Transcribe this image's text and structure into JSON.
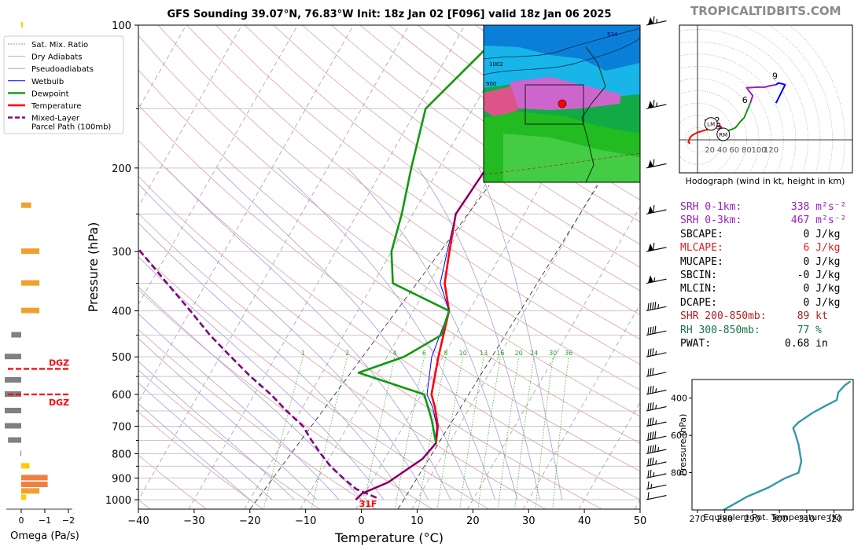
{
  "header": {
    "title": "GFS Sounding 39.07°N, 76.83°W Init: 18z Jan 02 [F096] valid 18z Jan 06 2025",
    "site": "TROPICALTIDBITS.COM"
  },
  "legend": {
    "items": [
      {
        "label": "Sat. Mix. Ratio",
        "color": "#2ca02c",
        "style": "dotted"
      },
      {
        "label": "Dry Adiabats",
        "color": "#e0a0a0",
        "style": "solid"
      },
      {
        "label": "Pseudoadiabats",
        "color": "#a0a0e0",
        "style": "solid"
      },
      {
        "label": "Wetbulb",
        "color": "#0000ff",
        "style": "solid"
      },
      {
        "label": "Dewpoint",
        "color": "#119911",
        "style": "solid"
      },
      {
        "label": "Temperature",
        "color": "#ff0000",
        "style": "solid"
      },
      {
        "label": "Mixed-Layer",
        "label2": "Parcel Path (100mb)",
        "color": "#800080",
        "style": "dashed"
      }
    ]
  },
  "chart_data": [
    {
      "type": "line",
      "name": "skew-t",
      "xlabel": "Temperature (°C)",
      "ylabel": "Pressure (hPa)",
      "xlim": [
        -40,
        50
      ],
      "ylim": [
        1000,
        100
      ],
      "log_y": true,
      "skew": true,
      "x_ticks": [
        "−40",
        "−30",
        "−20",
        "−10",
        "0",
        "10",
        "20",
        "30",
        "40",
        "50"
      ],
      "y_ticks": [
        "100",
        "200",
        "300",
        "400",
        "500",
        "600",
        "700",
        "800",
        "900",
        "1000"
      ],
      "mixing_ratio_labels": [
        "1",
        "2",
        "4",
        "6",
        "8",
        "10",
        "13",
        "16",
        "20",
        "24",
        "30",
        "36"
      ],
      "surface_label": "31F",
      "series": [
        {
          "name": "Temperature",
          "color": "#ff0000",
          "points": [
            [
              -1.0,
              1000
            ],
            [
              -0.5,
              970
            ],
            [
              3.0,
              920
            ],
            [
              6.8,
              820
            ],
            [
              7.6,
              760
            ],
            [
              6.2,
              700
            ],
            [
              3.8,
              640
            ],
            [
              1.8,
              600
            ],
            [
              -0.8,
              500
            ],
            [
              -3.6,
              400
            ],
            [
              -7.2,
              350
            ],
            [
              -9.6,
              300
            ],
            [
              -12.3,
              250
            ],
            [
              -11.5,
              200
            ],
            [
              -7.0,
              150
            ],
            [
              -0.5,
              100
            ]
          ]
        },
        {
          "name": "Wetbulb",
          "color": "#0000ff",
          "points": [
            [
              -1.0,
              1000
            ],
            [
              -0.5,
              970
            ],
            [
              3.0,
              920
            ],
            [
              6.8,
              820
            ],
            [
              7.5,
              760
            ],
            [
              6.0,
              700
            ],
            [
              3.4,
              640
            ],
            [
              1.0,
              600
            ],
            [
              -2.0,
              500
            ],
            [
              -3.6,
              400
            ],
            [
              -8.0,
              350
            ],
            [
              -10.0,
              300
            ],
            [
              -12.3,
              250
            ],
            [
              -11.5,
              200
            ],
            [
              -7.0,
              150
            ],
            [
              -0.7,
              100
            ]
          ]
        },
        {
          "name": "Dewpoint",
          "color": "#119911",
          "points": [
            [
              7.6,
              760
            ],
            [
              4.5,
              680
            ],
            [
              0.5,
              600
            ],
            [
              -13.5,
              540
            ],
            [
              -7.0,
              500
            ],
            [
              -2.5,
              450
            ],
            [
              -3.6,
              400
            ],
            [
              -16.5,
              350
            ],
            [
              -20.0,
              300
            ],
            [
              -22.0,
              250
            ],
            [
              -25.0,
              200
            ],
            [
              -28.5,
              150
            ],
            [
              -22.0,
              100
            ]
          ]
        },
        {
          "name": "Mixed-Layer Parcel Path (100mb)",
          "color": "#800080",
          "points": [
            [
              2.5,
              990
            ],
            [
              -2.0,
              950
            ],
            [
              -5.5,
              900
            ],
            [
              -9.0,
              850
            ],
            [
              -12.0,
              800
            ],
            [
              -15.0,
              750
            ],
            [
              -18.0,
              700
            ],
            [
              -22.5,
              650
            ],
            [
              -27.0,
              600
            ],
            [
              -32.5,
              550
            ],
            [
              -38.0,
              500
            ],
            [
              -44.0,
              450
            ],
            [
              -50.0,
              400
            ],
            [
              -57.0,
              350
            ],
            [
              -65.0,
              300
            ],
            [
              -74.0,
              250
            ]
          ]
        }
      ]
    },
    {
      "type": "bar",
      "name": "omega",
      "xlabel": "Omega (Pa/s)",
      "x_ticks": [
        "0",
        "−1",
        "−2"
      ],
      "dgz_label": "DGZ",
      "dgz_levels_hpa": [
        530,
        600
      ],
      "bars": [
        {
          "p": 100,
          "v": -0.1,
          "c": "#ffcc00"
        },
        {
          "p": 240,
          "v": -0.6,
          "c": "#f0a030"
        },
        {
          "p": 300,
          "v": -1.1,
          "c": "#f0a030"
        },
        {
          "p": 350,
          "v": -1.1,
          "c": "#f0a030"
        },
        {
          "p": 400,
          "v": -1.1,
          "c": "#f0a030"
        },
        {
          "p": 450,
          "v": 0.6,
          "c": "#808080"
        },
        {
          "p": 500,
          "v": 1.0,
          "c": "#808080"
        },
        {
          "p": 560,
          "v": 1.0,
          "c": "#808080"
        },
        {
          "p": 600,
          "v": 1.0,
          "c": "#808080"
        },
        {
          "p": 650,
          "v": 1.0,
          "c": "#808080"
        },
        {
          "p": 700,
          "v": 1.0,
          "c": "#808080"
        },
        {
          "p": 750,
          "v": 0.8,
          "c": "#808080"
        },
        {
          "p": 800,
          "v": 0.05,
          "c": "#808080"
        },
        {
          "p": 850,
          "v": -0.5,
          "c": "#ffcc00"
        },
        {
          "p": 900,
          "v": -1.6,
          "c": "#f08040"
        },
        {
          "p": 930,
          "v": -1.6,
          "c": "#f08040"
        },
        {
          "p": 960,
          "v": -1.1,
          "c": "#f0a030"
        },
        {
          "p": 990,
          "v": -0.3,
          "c": "#ffcc00"
        }
      ]
    },
    {
      "type": "line",
      "name": "hodograph",
      "xlabel": "Hodograph (wind in kt, height in km)",
      "x_ticks": [
        "20",
        "40",
        "60",
        "80",
        "100",
        "120"
      ],
      "height_labels": [
        "1",
        "2",
        "3",
        "6",
        "9"
      ],
      "motion_labels": [
        "LM",
        "RM"
      ],
      "segments": [
        {
          "color": "#ff0000",
          "points": [
            [
              -12,
              -6
            ],
            [
              -15,
              -4
            ],
            [
              -12,
              4
            ],
            [
              -8,
              8
            ],
            [
              0,
              12
            ],
            [
              20,
              18
            ],
            [
              26,
              20
            ],
            [
              34,
              22
            ],
            [
              38,
              22
            ],
            [
              40,
              18
            ],
            [
              40,
              12
            ]
          ]
        },
        {
          "color": "#119911",
          "points": [
            [
              40,
              12
            ],
            [
              46,
              14
            ],
            [
              56,
              17
            ],
            [
              62,
              20
            ],
            [
              70,
              30
            ],
            [
              76,
              36
            ],
            [
              86,
              60
            ]
          ]
        },
        {
          "color": "#9920bb",
          "points": [
            [
              86,
              60
            ],
            [
              90,
              72
            ],
            [
              80,
              85
            ],
            [
              100,
              86
            ],
            [
              110,
              86
            ],
            [
              117,
              88
            ],
            [
              128,
              90
            ]
          ]
        },
        {
          "color": "#0000ff",
          "points": [
            [
              128,
              90
            ],
            [
              132,
              93
            ],
            [
              143,
              90
            ],
            [
              128,
              60
            ]
          ]
        }
      ],
      "markers": [
        {
          "label": "1",
          "at": [
            20,
            18
          ]
        },
        {
          "label": "2",
          "at": [
            38,
            22
          ]
        },
        {
          "label": "3",
          "at": [
            40,
            12
          ]
        },
        {
          "label": "6",
          "at": [
            83,
            55
          ]
        },
        {
          "label": "9",
          "at": [
            132,
            94
          ]
        }
      ],
      "motions": [
        {
          "label": "LM",
          "at": [
            22,
            26
          ]
        },
        {
          "label": "RM",
          "at": [
            42,
            9
          ]
        }
      ]
    },
    {
      "type": "line",
      "name": "theta-e",
      "xlabel": "Equivalent Pot. Temperature (K)",
      "ylabel": "Pressure (hPa)",
      "xlim": [
        268,
        327
      ],
      "ylim": [
        1000,
        300
      ],
      "x_ticks": [
        "270",
        "280",
        "290",
        "300",
        "310",
        "320"
      ],
      "y_ticks": [
        "400",
        "600",
        "800"
      ],
      "series": [
        {
          "name": "Theta-E",
          "color": "#3399aa",
          "points": [
            [
              279.5,
              1000
            ],
            [
              282,
              980
            ],
            [
              288,
              930
            ],
            [
              296,
              880
            ],
            [
              302,
              830
            ],
            [
              307,
              800
            ],
            [
              308,
              740
            ],
            [
              307,
              650
            ],
            [
              306,
              600
            ],
            [
              305,
              560
            ],
            [
              307,
              530
            ],
            [
              312,
              480
            ],
            [
              317,
              440
            ],
            [
              321,
              410
            ],
            [
              321.5,
              370
            ],
            [
              324,
              330
            ],
            [
              326,
              310
            ]
          ]
        }
      ]
    }
  ],
  "indices": [
    {
      "label": "SRH 0-1km:",
      "value": "338",
      "unit": "m²s⁻²",
      "color": "#9920bb"
    },
    {
      "label": "SRH 0-3km:",
      "value": "467",
      "unit": "m²s⁻²",
      "color": "#9920bb"
    },
    {
      "label": "SBCAPE:",
      "value": "0",
      "unit": "J/kg",
      "color": "#000000"
    },
    {
      "label": "MLCAPE:",
      "value": "6",
      "unit": "J/kg",
      "color": "#dd2222"
    },
    {
      "label": "MUCAPE:",
      "value": "0",
      "unit": "J/kg",
      "color": "#000000"
    },
    {
      "label": "SBCIN:",
      "value": "-0",
      "unit": "J/kg",
      "color": "#000000"
    },
    {
      "label": "MLCIN:",
      "value": "0",
      "unit": "J/kg",
      "color": "#000000"
    },
    {
      "label": "DCAPE:",
      "value": "0",
      "unit": "J/kg",
      "color": "#000000"
    },
    {
      "label": "SHR 200-850mb:",
      "value": "89",
      "unit": "kt",
      "color": "#aa2222"
    },
    {
      "label": "RH 300-850mb:",
      "value": "77",
      "unit": "%",
      "color": "#117744"
    },
    {
      "label": "PWAT:",
      "value": "0.68",
      "unit": "in",
      "color": "#000000"
    }
  ],
  "map": {
    "contour_labels": [
      "534",
      "1002",
      "900"
    ]
  }
}
